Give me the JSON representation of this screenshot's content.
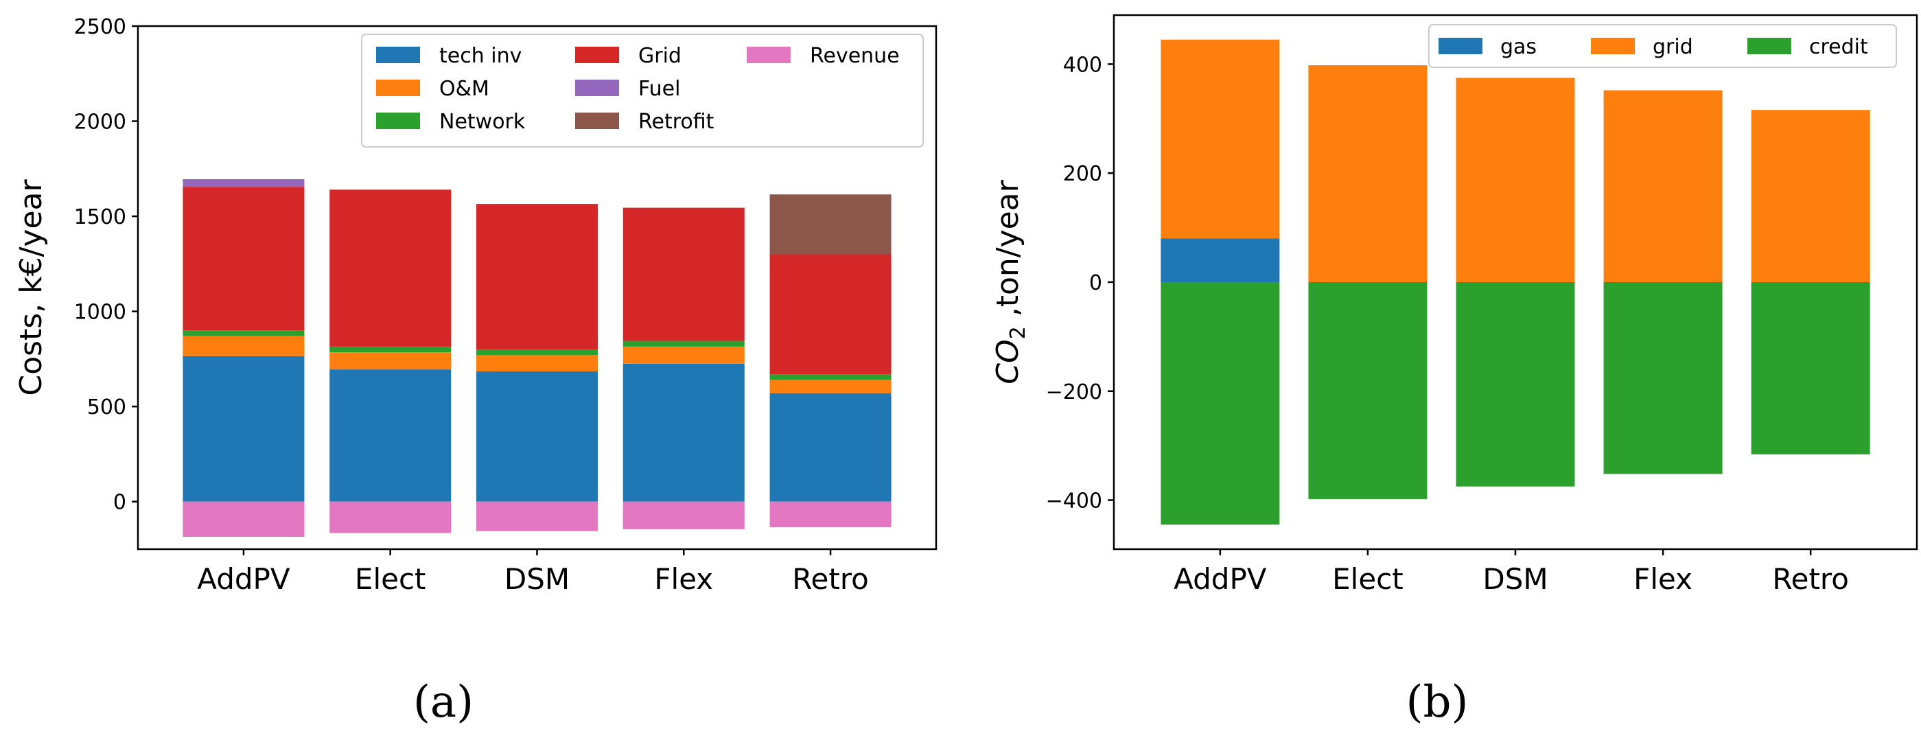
{
  "chart_data": [
    {
      "type": "bar",
      "stacked": true,
      "panel_label": "(a)",
      "title": "",
      "xlabel": "",
      "ylabel": "Costs, k€/year",
      "ylim": [
        -250,
        2500
      ],
      "yticks": [
        0,
        500,
        1000,
        1500,
        2000,
        2500
      ],
      "categories": [
        "AddPV",
        "Elect",
        "DSM",
        "Flex",
        "Retro"
      ],
      "legend_position": "upper-right",
      "legend_order": [
        "tech inv",
        "O&M",
        "Network",
        "Grid",
        "Fuel",
        "Retrofit",
        "Revenue"
      ],
      "series": [
        {
          "name": "tech inv",
          "color": "#1f77b4",
          "values": [
            765,
            695,
            685,
            725,
            570
          ]
        },
        {
          "name": "O&M",
          "color": "#ff7f0e",
          "values": [
            105,
            90,
            85,
            90,
            70
          ]
        },
        {
          "name": "Network",
          "color": "#2ca02c",
          "values": [
            30,
            30,
            30,
            30,
            30
          ]
        },
        {
          "name": "Grid",
          "color": "#d62728",
          "values": [
            755,
            825,
            765,
            700,
            630
          ]
        },
        {
          "name": "Fuel",
          "color": "#9467bd",
          "values": [
            40,
            0,
            0,
            0,
            0
          ]
        },
        {
          "name": "Retrofit",
          "color": "#8c564b",
          "values": [
            0,
            0,
            0,
            0,
            315
          ]
        },
        {
          "name": "Revenue",
          "color": "#e377c2",
          "values": [
            -185,
            -165,
            -155,
            -145,
            -135
          ]
        }
      ]
    },
    {
      "type": "bar",
      "stacked": true,
      "panel_label": "(b)",
      "title": "",
      "xlabel": "",
      "ylabel_main": "CO",
      "ylabel_sub": "2",
      "ylabel_rest": " ,ton/year",
      "ylim": [
        -490,
        490
      ],
      "yticks": [
        -400,
        -200,
        0,
        200,
        400
      ],
      "categories": [
        "AddPV",
        "Elect",
        "DSM",
        "Flex",
        "Retro"
      ],
      "legend_position": "top-right",
      "series": [
        {
          "name": "gas",
          "color": "#1f77b4",
          "values": [
            80,
            0,
            0,
            0,
            0
          ]
        },
        {
          "name": "grid",
          "color": "#ff7f0e",
          "values": [
            365,
            398,
            375,
            352,
            316
          ]
        },
        {
          "name": "credit",
          "color": "#2ca02c",
          "values": [
            -445,
            -398,
            -375,
            -352,
            -316
          ]
        }
      ]
    }
  ]
}
